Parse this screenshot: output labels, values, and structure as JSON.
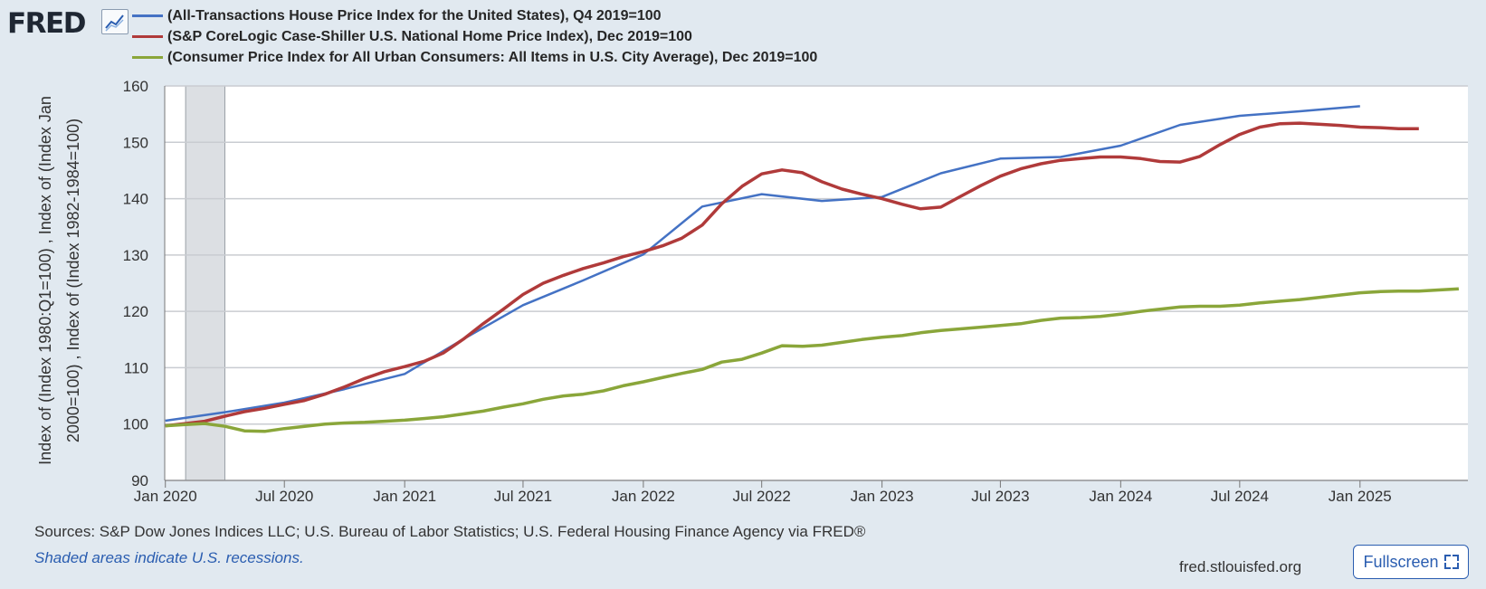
{
  "brand": {
    "logo_text": "FRED",
    "logo_icon": "chart-line-icon"
  },
  "legend": [
    {
      "label": "(All-Transactions House Price Index for the United States), Q4 2019=100",
      "color": "#4472c4"
    },
    {
      "label": "(S&P CoreLogic Case-Shiller U.S. National Home Price Index), Dec 2019=100",
      "color": "#b03a3a"
    },
    {
      "label": "(Consumer Price Index for All Urban Consumers: All Items in U.S. City Average), Dec 2019=100",
      "color": "#8aa63a"
    }
  ],
  "y_axis_title": "Index of (Index 1980:Q1=100) , Index of (Index Jan 2000=100) , Index of (Index 1982-1984=100)",
  "footer": {
    "sources": "Sources: S&P Dow Jones Indices LLC; U.S. Bureau of Labor Statistics; U.S. Federal Housing Finance Agency via FRED®",
    "recession_note": "Shaded areas indicate U.S. recessions.",
    "site": "fred.stlouisfed.org",
    "fullscreen_label": "Fullscreen"
  },
  "chart_data": {
    "type": "line",
    "ylim": [
      90,
      160
    ],
    "yticks": [
      90,
      100,
      110,
      120,
      130,
      140,
      150,
      160
    ],
    "xlim": [
      "2019-12-31",
      "2025-06-15"
    ],
    "xticks": [
      {
        "label": "Jan 2020",
        "date": "2020-01-01"
      },
      {
        "label": "Jul 2020",
        "date": "2020-07-01"
      },
      {
        "label": "Jan 2021",
        "date": "2021-01-01"
      },
      {
        "label": "Jul 2021",
        "date": "2021-07-01"
      },
      {
        "label": "Jan 2022",
        "date": "2022-01-01"
      },
      {
        "label": "Jul 2022",
        "date": "2022-07-01"
      },
      {
        "label": "Jan 2023",
        "date": "2023-01-01"
      },
      {
        "label": "Jul 2023",
        "date": "2023-07-01"
      },
      {
        "label": "Jan 2024",
        "date": "2024-01-01"
      },
      {
        "label": "Jul 2024",
        "date": "2024-07-01"
      },
      {
        "label": "Jan 2025",
        "date": "2025-01-01"
      }
    ],
    "grid": true,
    "recessions": [
      {
        "start": "2020-02-01",
        "end": "2020-04-01"
      }
    ],
    "series": [
      {
        "name": "(All-Transactions House Price Index for the United States), Q4 2019=100",
        "color": "#4472c4",
        "x": [
          "2020-01-01",
          "2020-04-01",
          "2020-07-01",
          "2020-10-01",
          "2021-01-01",
          "2021-04-01",
          "2021-07-01",
          "2021-10-01",
          "2022-01-01",
          "2022-04-01",
          "2022-07-01",
          "2022-10-01",
          "2023-01-01",
          "2023-04-01",
          "2023-07-01",
          "2023-10-01",
          "2024-01-01",
          "2024-04-01",
          "2024-07-01",
          "2024-10-01",
          "2025-01-01"
        ],
        "y": [
          100.6,
          102.1,
          103.8,
          106.2,
          108.9,
          115.1,
          121.1,
          125.5,
          130.1,
          138.6,
          140.8,
          139.6,
          140.3,
          144.5,
          147.1,
          147.4,
          149.4,
          153.1,
          154.7,
          155.5,
          156.4
        ]
      },
      {
        "name": "(S&P CoreLogic Case-Shiller U.S. National Home Price Index), Dec 2019=100",
        "color": "#b03a3a",
        "x": [
          "2020-01-01",
          "2020-02-01",
          "2020-03-01",
          "2020-04-01",
          "2020-05-01",
          "2020-06-01",
          "2020-07-01",
          "2020-08-01",
          "2020-09-01",
          "2020-10-01",
          "2020-11-01",
          "2020-12-01",
          "2021-01-01",
          "2021-02-01",
          "2021-03-01",
          "2021-04-01",
          "2021-05-01",
          "2021-06-01",
          "2021-07-01",
          "2021-08-01",
          "2021-09-01",
          "2021-10-01",
          "2021-11-01",
          "2021-12-01",
          "2022-01-01",
          "2022-02-01",
          "2022-03-01",
          "2022-04-01",
          "2022-05-01",
          "2022-06-01",
          "2022-07-01",
          "2022-08-01",
          "2022-09-01",
          "2022-10-01",
          "2022-11-01",
          "2022-12-01",
          "2023-01-01",
          "2023-02-01",
          "2023-03-01",
          "2023-04-01",
          "2023-05-01",
          "2023-06-01",
          "2023-07-01",
          "2023-08-01",
          "2023-09-01",
          "2023-10-01",
          "2023-11-01",
          "2023-12-01",
          "2024-01-01",
          "2024-02-01",
          "2024-03-01",
          "2024-04-01",
          "2024-05-01",
          "2024-06-01",
          "2024-07-01",
          "2024-08-01",
          "2024-09-01",
          "2024-10-01",
          "2024-11-01",
          "2024-12-01",
          "2025-01-01",
          "2025-02-01",
          "2025-03-01",
          "2025-04-01"
        ],
        "y": [
          99.7,
          100.1,
          100.5,
          101.4,
          102.2,
          102.8,
          103.5,
          104.2,
          105.3,
          106.6,
          108.1,
          109.3,
          110.2,
          111.2,
          112.6,
          115.1,
          117.8,
          120.4,
          123.0,
          125.0,
          126.4,
          127.6,
          128.6,
          129.7,
          130.6,
          131.7,
          133.0,
          135.3,
          139.1,
          142.2,
          144.4,
          145.1,
          144.6,
          143.0,
          141.7,
          140.8,
          140.0,
          139.0,
          138.2,
          138.5,
          140.4,
          142.3,
          144.0,
          145.3,
          146.2,
          146.8,
          147.1,
          147.4,
          147.4,
          147.1,
          146.6,
          146.5,
          147.5,
          149.6,
          151.4,
          152.7,
          153.3,
          153.4,
          153.2,
          153.0,
          152.7,
          152.6,
          152.4,
          152.4
        ]
      },
      {
        "name": "(Consumer Price Index for All Urban Consumers: All Items in U.S. City Average), Dec 2019=100",
        "color": "#8aa63a",
        "x": [
          "2020-01-01",
          "2020-02-01",
          "2020-03-01",
          "2020-04-01",
          "2020-05-01",
          "2020-06-01",
          "2020-07-01",
          "2020-08-01",
          "2020-09-01",
          "2020-10-01",
          "2020-11-01",
          "2020-12-01",
          "2021-01-01",
          "2021-02-01",
          "2021-03-01",
          "2021-04-01",
          "2021-05-01",
          "2021-06-01",
          "2021-07-01",
          "2021-08-01",
          "2021-09-01",
          "2021-10-01",
          "2021-11-01",
          "2021-12-01",
          "2022-01-01",
          "2022-02-01",
          "2022-03-01",
          "2022-04-01",
          "2022-05-01",
          "2022-06-01",
          "2022-07-01",
          "2022-08-01",
          "2022-09-01",
          "2022-10-01",
          "2022-11-01",
          "2022-12-01",
          "2023-01-01",
          "2023-02-01",
          "2023-03-01",
          "2023-04-01",
          "2023-05-01",
          "2023-06-01",
          "2023-07-01",
          "2023-08-01",
          "2023-09-01",
          "2023-10-01",
          "2023-11-01",
          "2023-12-01",
          "2024-01-01",
          "2024-02-01",
          "2024-03-01",
          "2024-04-01",
          "2024-05-01",
          "2024-06-01",
          "2024-07-01",
          "2024-08-01",
          "2024-09-01",
          "2024-10-01",
          "2024-11-01",
          "2024-12-01",
          "2025-01-01",
          "2025-02-01",
          "2025-03-01",
          "2025-04-01",
          "2025-05-01",
          "2025-06-01"
        ],
        "y": [
          99.7,
          99.9,
          100.1,
          99.6,
          98.8,
          98.7,
          99.2,
          99.6,
          100.0,
          100.2,
          100.3,
          100.5,
          100.7,
          101.0,
          101.3,
          101.8,
          102.3,
          103.0,
          103.6,
          104.4,
          105.0,
          105.3,
          105.9,
          106.8,
          107.5,
          108.3,
          109.0,
          109.7,
          111.0,
          111.5,
          112.6,
          113.9,
          113.8,
          114.0,
          114.5,
          115.0,
          115.4,
          115.7,
          116.2,
          116.6,
          116.9,
          117.2,
          117.5,
          117.8,
          118.4,
          118.8,
          118.9,
          119.1,
          119.5,
          120.0,
          120.4,
          120.8,
          120.9,
          120.9,
          121.1,
          121.5,
          121.8,
          122.1,
          122.5,
          122.9,
          123.3,
          123.5,
          123.6,
          123.6,
          123.8,
          124.0
        ]
      }
    ]
  }
}
